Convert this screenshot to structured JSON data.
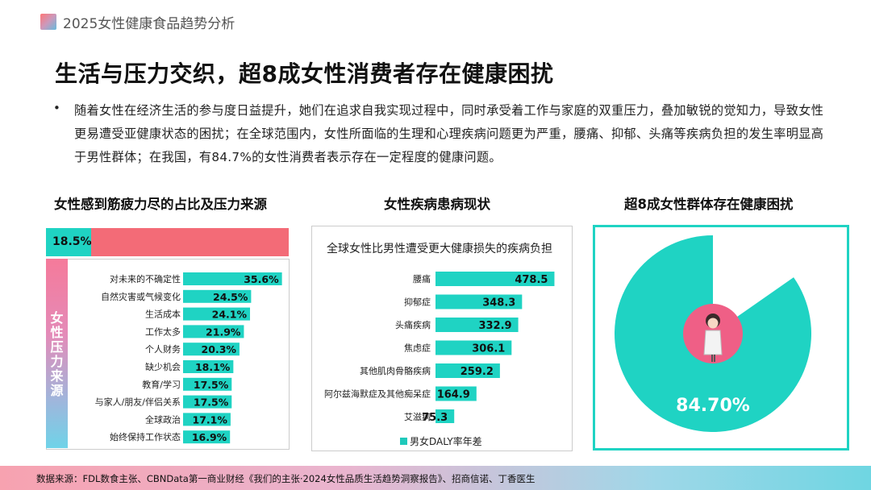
{
  "header": {
    "label": "2025女性健康食品趋势分析"
  },
  "page_title": "生活与压力交织，超8成女性消费者存在健康困扰",
  "paragraph": "随着女性在经济生活的参与度日益提升，她们在追求自我实现过程中，同时承受着工作与家庭的双重压力，叠加敏锐的觉知力，导致女性更易遭受亚健康状态的困扰；在全球范围内，女性所面临的生理和心理疾病问题更为严重，腰痛、抑郁、头痛等疾病负担的发生率明显高于男性群体；在我国，有84.7%的女性消费者表示存在一定程度的健康问题。",
  "section_titles": {
    "left": "女性感到筋疲力尽的占比及压力来源",
    "middle": "女性疾病患病现状",
    "right": "超8成女性群体存在健康困扰"
  },
  "footer": {
    "source": "数据来源：FDL数食主张、CBNData第一商业财经《我们的主张·2024女性品质生活趋势洞察报告》、招商信诺、丁香医生"
  },
  "colors": {
    "teal": "#1fd3c3",
    "pink": "#f36b77"
  },
  "chart_data": [
    {
      "type": "bar",
      "title": "",
      "side_label": "女性压力来源",
      "exhausted_share_label": "18.5%",
      "exhausted_share": 18.5,
      "categories": [
        "对未来的不确定性",
        "自然灾害或气候变化",
        "生活成本",
        "工作太多",
        "个人财务",
        "缺少机会",
        "教育/学习",
        "与家人/朋友/伴侣关系",
        "全球政治",
        "始终保持工作状态"
      ],
      "values": [
        35.6,
        24.5,
        24.1,
        21.9,
        20.3,
        18.1,
        17.5,
        17.5,
        17.1,
        16.9
      ],
      "value_labels": [
        "35.6%",
        "24.5%",
        "24.1%",
        "21.9%",
        "20.3%",
        "18.1%",
        "17.5%",
        "17.5%",
        "17.1%",
        "16.9%"
      ],
      "xlim": [
        0,
        36
      ]
    },
    {
      "type": "bar",
      "title": "全球女性比男性遭受更大健康损失的疾病负担",
      "categories": [
        "腰痛",
        "抑郁症",
        "头痛疾病",
        "焦虑症",
        "其他肌肉骨骼疾病",
        "阿尔兹海默症及其他痴呆症",
        "艾滋病"
      ],
      "values": [
        478.5,
        348.3,
        332.9,
        306.1,
        259.2,
        164.9,
        75.3
      ],
      "value_labels": [
        "478.5",
        "348.3",
        "332.9",
        "306.1",
        "259.2",
        "164.9",
        "75.3"
      ],
      "legend": [
        "男女DALY率年差"
      ],
      "xlim": [
        0,
        490
      ]
    },
    {
      "type": "pie",
      "values": [
        84.7,
        15.3
      ],
      "center_label": "84.70%",
      "colors": [
        "#1fd3c3",
        "#ffffff"
      ]
    }
  ]
}
